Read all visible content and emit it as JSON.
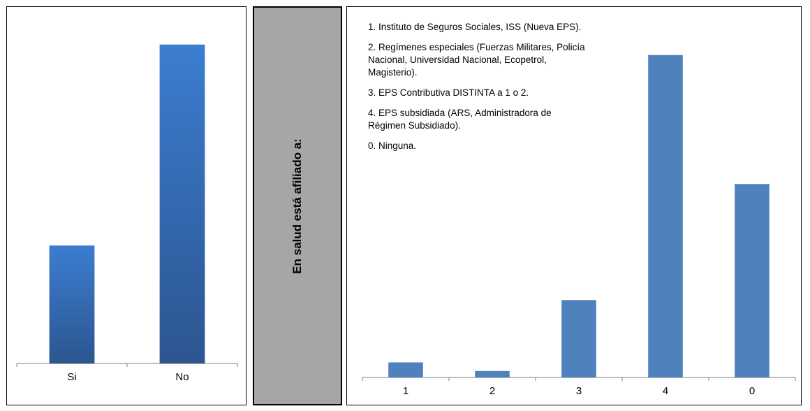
{
  "chart_data": [
    {
      "type": "bar",
      "categories": [
        "Si",
        "No"
      ],
      "values": [
        27,
        73
      ],
      "ylim": [
        0,
        80
      ],
      "grid": false,
      "colors": {
        "bar_top": "#3b7dd0",
        "bar_bottom": "#2d5590"
      }
    },
    {
      "type": "bar",
      "categories": [
        "1",
        "2",
        "3",
        "4",
        "0"
      ],
      "values": [
        3.5,
        1.5,
        18,
        75,
        45
      ],
      "ylim": [
        0,
        80
      ],
      "grid": false,
      "colors": {
        "bar": "#4f81bd"
      }
    }
  ],
  "side_label": "En salud está afiliado a:",
  "legend_items": [
    "1. Instituto de Seguros Sociales, ISS (Nueva EPS).",
    "2. Regímenes especiales (Fuerzas Militares, Policía Nacional, Universidad Nacional, Ecopetrol, Magisterio).",
    "3. EPS Contributiva DISTINTA a 1 o 2.",
    "4. EPS subsidiada (ARS, Administradora de Régimen Subsidiado).",
    "0. Ninguna."
  ]
}
